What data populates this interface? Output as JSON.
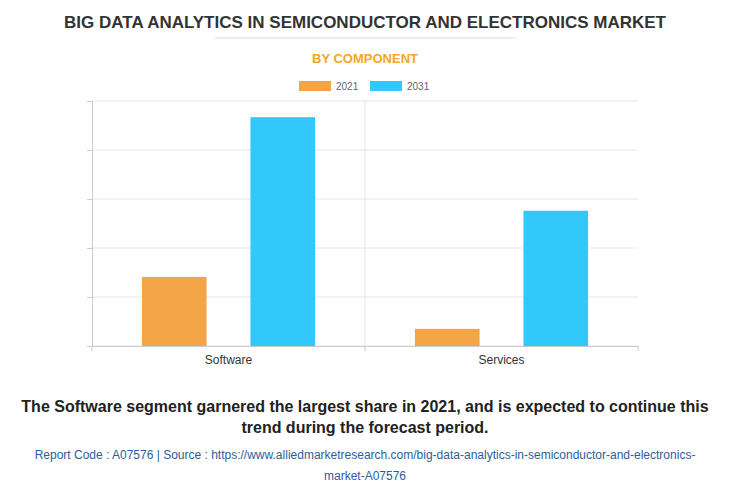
{
  "chart_data": {
    "type": "bar",
    "title": "BIG DATA ANALYTICS IN SEMICONDUCTOR AND ELECTRONICS MARKET",
    "subtitle": "BY COMPONENT",
    "categories": [
      "Software",
      "Services"
    ],
    "series": [
      {
        "name": "2021",
        "color": "#f4a548",
        "values": [
          1.41,
          0.35
        ]
      },
      {
        "name": "2031",
        "color": "#33c8fc",
        "values": [
          4.67,
          2.76
        ]
      }
    ],
    "ylim": [
      0,
      5
    ],
    "yticks": [
      0,
      1,
      2,
      3,
      4,
      5
    ],
    "grid": true,
    "legend": "top",
    "tick_labels": "x",
    "annotations": [
      "The Software segment garnered the largest share in 2021, and is expected to continue this trend during the forecast period.",
      "Report Code : A07576  |  Source : https://www.alliedmarketresearch.com/big-data-analytics-in-semiconductor-and-electronics-market-A07576"
    ]
  }
}
